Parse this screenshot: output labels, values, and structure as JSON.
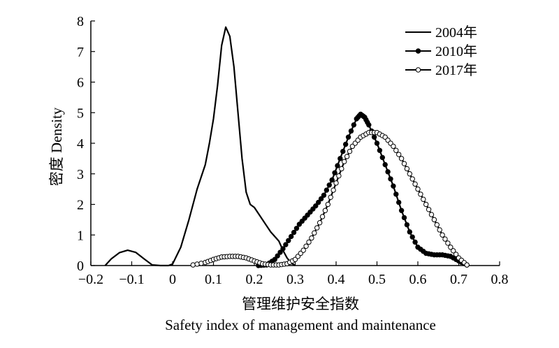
{
  "chart_data": {
    "type": "line",
    "title": "",
    "xlabel_cn": "管理维护安全指数",
    "xlabel_en": "Safety index of management and maintenance",
    "ylabel": "密度 Density",
    "xlim": [
      -0.2,
      0.8
    ],
    "ylim": [
      0,
      8
    ],
    "x_ticks": [
      -0.2,
      -0.1,
      0,
      0.1,
      0.2,
      0.3,
      0.4,
      0.5,
      0.6,
      0.7,
      0.8
    ],
    "x_tick_labels": [
      "−0.2",
      "−0.1",
      "0",
      "0.1",
      "0.2",
      "0.3",
      "0.4",
      "0.5",
      "0.6",
      "0.7",
      "0.8"
    ],
    "y_ticks": [
      0,
      1,
      2,
      3,
      4,
      5,
      6,
      7,
      8
    ],
    "y_tick_labels": [
      "0",
      "1",
      "2",
      "3",
      "4",
      "5",
      "6",
      "7",
      "8"
    ],
    "grid": false,
    "legend_position": "top-right",
    "series": [
      {
        "name": "2004年",
        "marker": "none",
        "color": "#000000",
        "points": [
          [
            -0.165,
            0.0
          ],
          [
            -0.15,
            0.22
          ],
          [
            -0.13,
            0.42
          ],
          [
            -0.11,
            0.5
          ],
          [
            -0.09,
            0.43
          ],
          [
            -0.07,
            0.22
          ],
          [
            -0.05,
            0.02
          ],
          [
            -0.03,
            0.0
          ],
          [
            -0.01,
            0.0
          ],
          [
            0.0,
            0.05
          ],
          [
            0.02,
            0.6
          ],
          [
            0.04,
            1.5
          ],
          [
            0.06,
            2.5
          ],
          [
            0.08,
            3.3
          ],
          [
            0.09,
            4.0
          ],
          [
            0.1,
            4.8
          ],
          [
            0.11,
            5.9
          ],
          [
            0.12,
            7.2
          ],
          [
            0.13,
            7.8
          ],
          [
            0.14,
            7.5
          ],
          [
            0.15,
            6.5
          ],
          [
            0.16,
            5.0
          ],
          [
            0.17,
            3.5
          ],
          [
            0.18,
            2.4
          ],
          [
            0.19,
            2.0
          ],
          [
            0.2,
            1.9
          ],
          [
            0.22,
            1.5
          ],
          [
            0.24,
            1.1
          ],
          [
            0.26,
            0.8
          ],
          [
            0.27,
            0.5
          ],
          [
            0.28,
            0.25
          ],
          [
            0.29,
            0.08
          ],
          [
            0.3,
            0.0
          ]
        ]
      },
      {
        "name": "2010年",
        "marker": "filled-circle",
        "color": "#000000",
        "points": [
          [
            0.21,
            0.0
          ],
          [
            0.23,
            0.02
          ],
          [
            0.25,
            0.2
          ],
          [
            0.27,
            0.55
          ],
          [
            0.29,
            0.95
          ],
          [
            0.31,
            1.35
          ],
          [
            0.33,
            1.65
          ],
          [
            0.35,
            1.95
          ],
          [
            0.37,
            2.3
          ],
          [
            0.39,
            2.8
          ],
          [
            0.41,
            3.5
          ],
          [
            0.43,
            4.2
          ],
          [
            0.45,
            4.8
          ],
          [
            0.46,
            4.95
          ],
          [
            0.47,
            4.85
          ],
          [
            0.48,
            4.6
          ],
          [
            0.5,
            4.0
          ],
          [
            0.52,
            3.3
          ],
          [
            0.54,
            2.6
          ],
          [
            0.56,
            1.8
          ],
          [
            0.58,
            1.1
          ],
          [
            0.6,
            0.6
          ],
          [
            0.62,
            0.4
          ],
          [
            0.64,
            0.35
          ],
          [
            0.66,
            0.35
          ],
          [
            0.68,
            0.3
          ],
          [
            0.7,
            0.15
          ],
          [
            0.72,
            0.02
          ]
        ]
      },
      {
        "name": "2017年",
        "marker": "open-circle",
        "color": "#000000",
        "points": [
          [
            0.05,
            0.02
          ],
          [
            0.08,
            0.1
          ],
          [
            0.1,
            0.2
          ],
          [
            0.12,
            0.28
          ],
          [
            0.14,
            0.3
          ],
          [
            0.16,
            0.3
          ],
          [
            0.18,
            0.25
          ],
          [
            0.2,
            0.15
          ],
          [
            0.22,
            0.06
          ],
          [
            0.24,
            0.02
          ],
          [
            0.26,
            0.02
          ],
          [
            0.28,
            0.06
          ],
          [
            0.3,
            0.2
          ],
          [
            0.32,
            0.5
          ],
          [
            0.34,
            0.9
          ],
          [
            0.36,
            1.4
          ],
          [
            0.38,
            2.0
          ],
          [
            0.4,
            2.7
          ],
          [
            0.42,
            3.4
          ],
          [
            0.44,
            3.9
          ],
          [
            0.46,
            4.2
          ],
          [
            0.48,
            4.35
          ],
          [
            0.5,
            4.35
          ],
          [
            0.52,
            4.2
          ],
          [
            0.54,
            3.9
          ],
          [
            0.56,
            3.5
          ],
          [
            0.58,
            3.0
          ],
          [
            0.6,
            2.5
          ],
          [
            0.62,
            2.0
          ],
          [
            0.64,
            1.5
          ],
          [
            0.66,
            1.0
          ],
          [
            0.68,
            0.6
          ],
          [
            0.7,
            0.25
          ],
          [
            0.72,
            0.02
          ]
        ]
      }
    ]
  }
}
